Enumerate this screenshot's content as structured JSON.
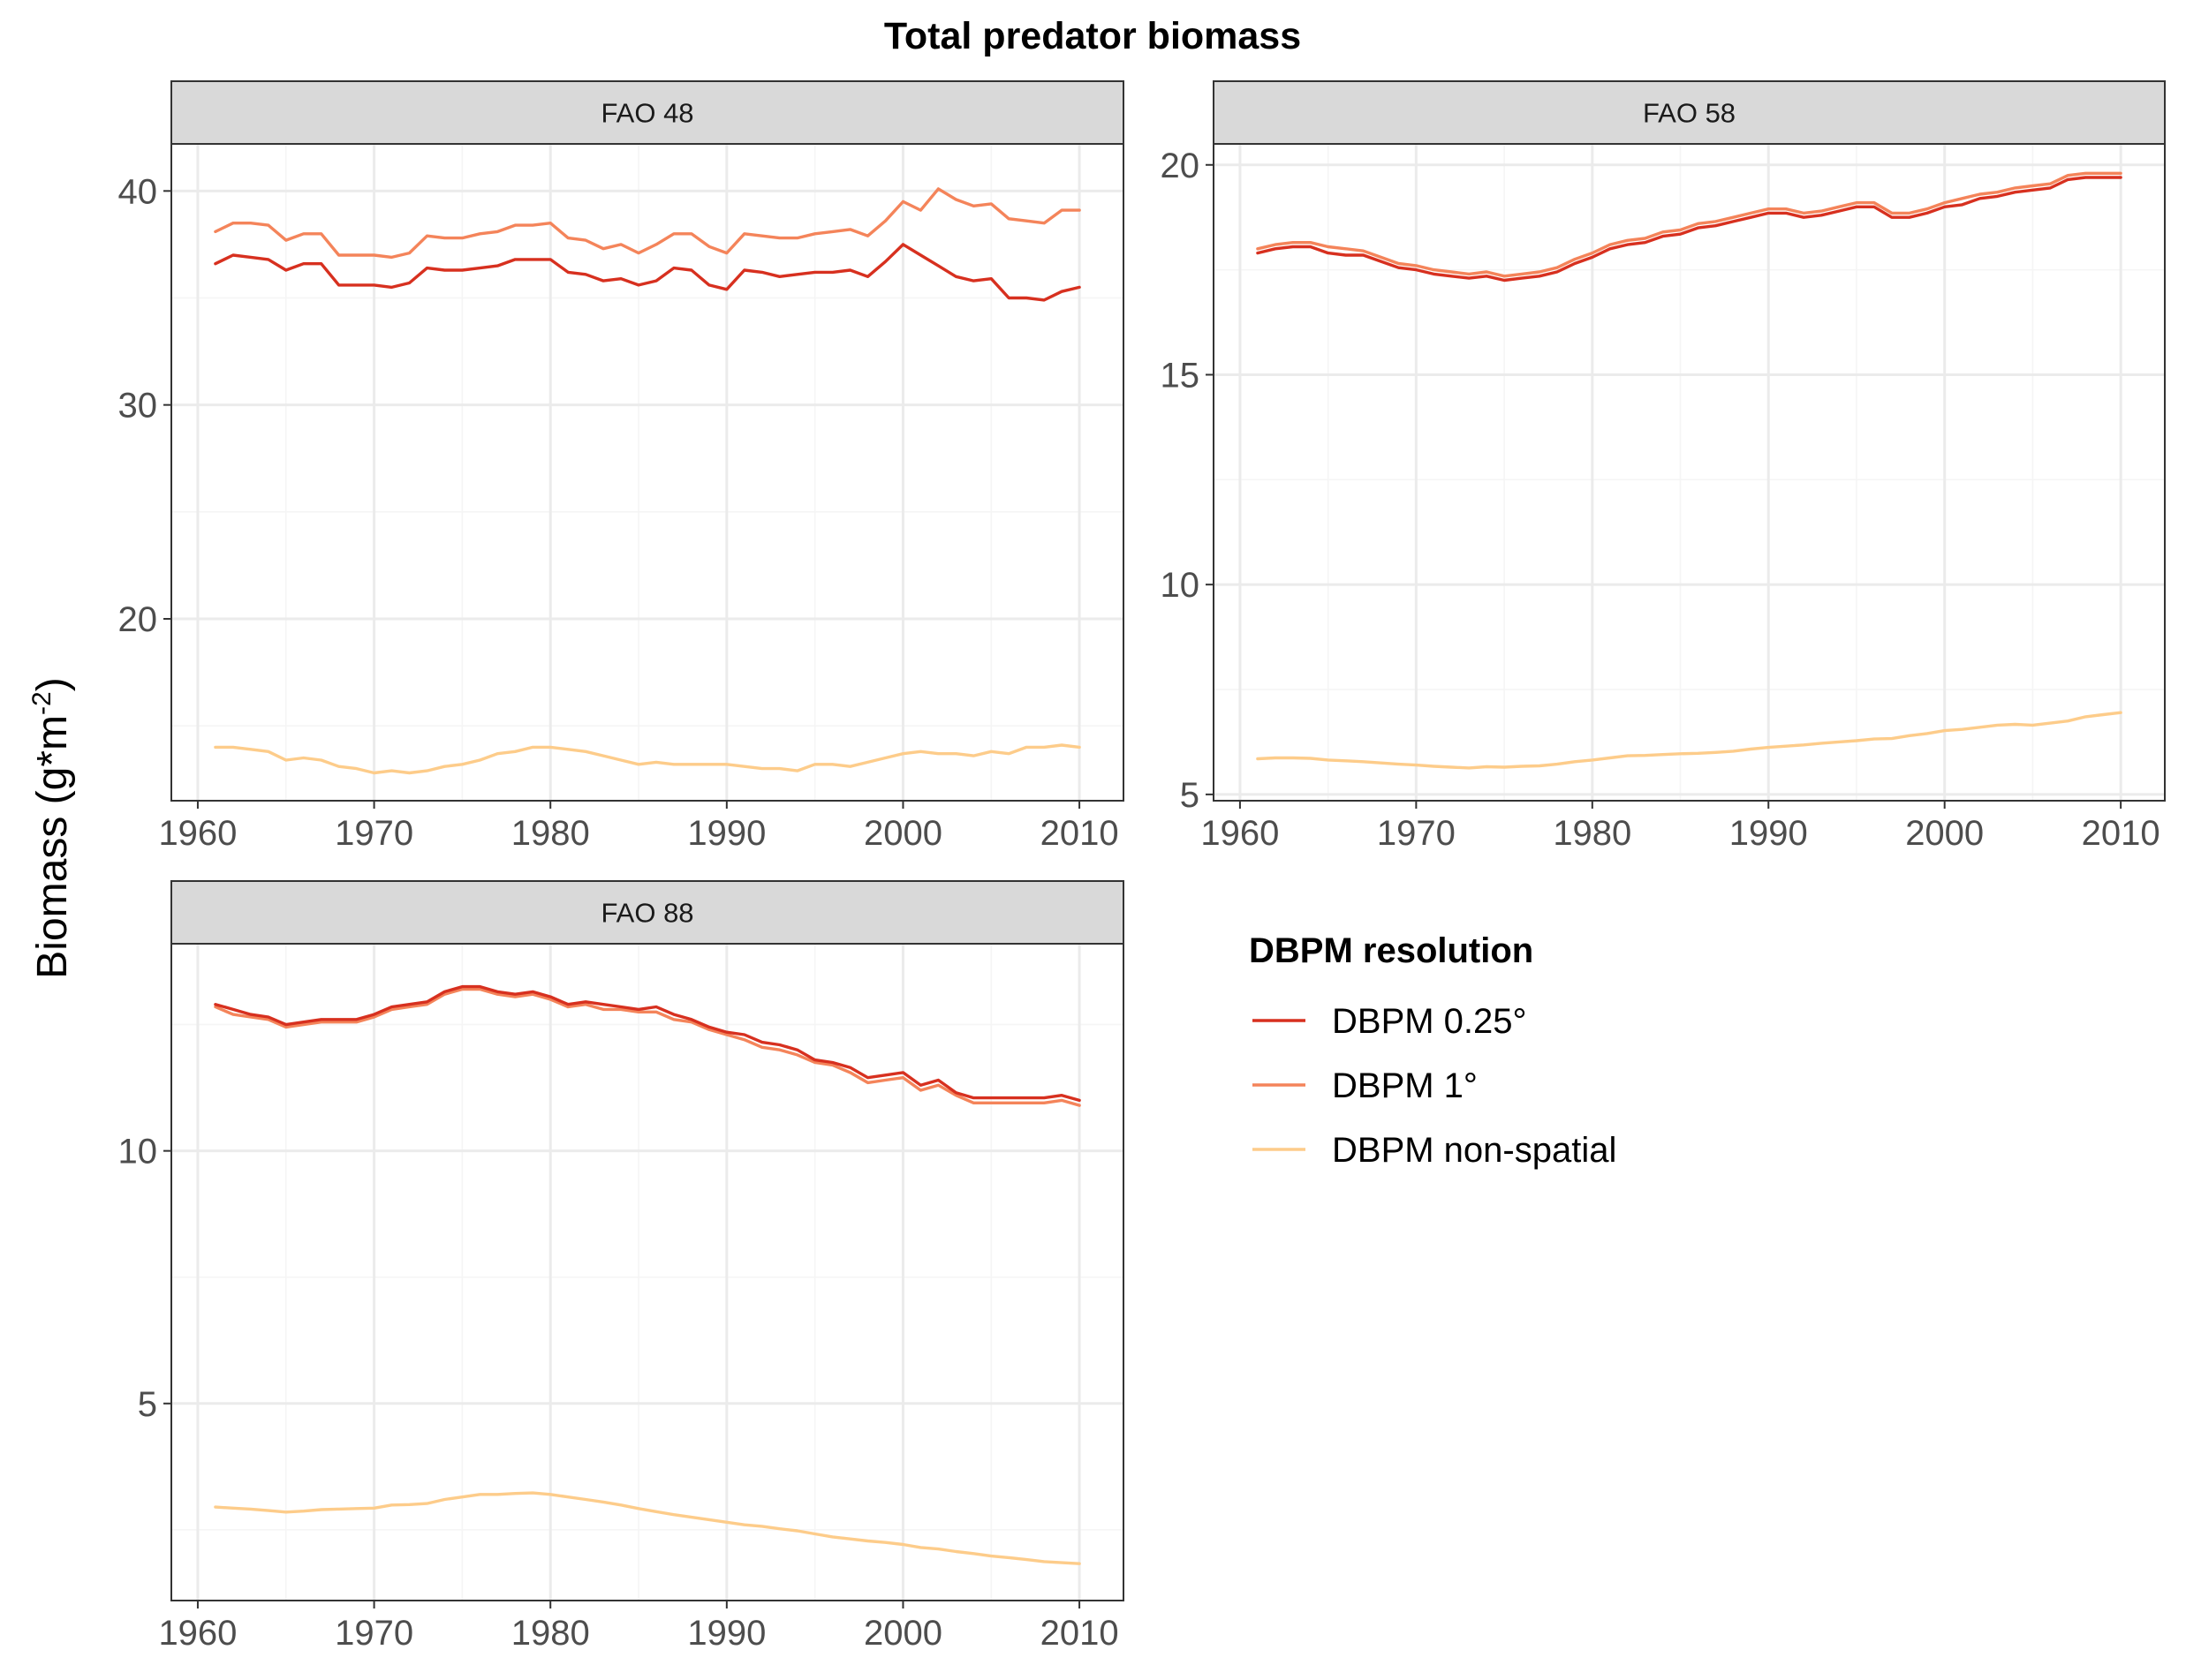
{
  "title": "Total predator biomass",
  "ylabel_prefix": "Biomass (g*m",
  "ylabel_sup": "-2",
  "ylabel_suffix": ")",
  "legend": {
    "title": "DBPM resolution",
    "placement": "right"
  },
  "colors": {
    "DBPM 0.25°": "#d7301f",
    "DBPM 1°": "#f4845a",
    "DBPM non-spatial": "#fdcc8a",
    "panel_border": "#333333",
    "strip_bg": "#d9d9d9",
    "grid_major": "#ebebeb",
    "grid_minor": "#f5f5f5"
  },
  "chart_data": [
    {
      "type": "line",
      "panel": "FAO 48",
      "x": [
        1961,
        1962,
        1963,
        1964,
        1965,
        1966,
        1967,
        1968,
        1969,
        1970,
        1971,
        1972,
        1973,
        1974,
        1975,
        1976,
        1977,
        1978,
        1979,
        1980,
        1981,
        1982,
        1983,
        1984,
        1985,
        1986,
        1987,
        1988,
        1989,
        1990,
        1991,
        1992,
        1993,
        1994,
        1995,
        1996,
        1997,
        1998,
        1999,
        2000,
        2001,
        2002,
        2003,
        2004,
        2005,
        2006,
        2007,
        2008,
        2009,
        2010
      ],
      "xlim": [
        1958.5,
        2012.5
      ],
      "ylim": [
        11.5,
        42.2
      ],
      "yticks": [
        20,
        30,
        40
      ],
      "xticks": [
        1960,
        1970,
        1980,
        1990,
        2000,
        2010
      ],
      "grid": true,
      "series": [
        {
          "name": "DBPM 0.25°",
          "values": [
            36.6,
            37.0,
            36.9,
            36.8,
            36.3,
            36.6,
            36.6,
            35.6,
            35.6,
            35.6,
            35.5,
            35.7,
            36.4,
            36.3,
            36.3,
            36.4,
            36.5,
            36.8,
            36.8,
            36.8,
            36.2,
            36.1,
            35.8,
            35.9,
            35.6,
            35.8,
            36.4,
            36.3,
            35.6,
            35.4,
            36.3,
            36.2,
            36.0,
            36.1,
            36.2,
            36.2,
            36.3,
            36.0,
            36.7,
            37.5,
            37.0,
            36.5,
            36.0,
            35.8,
            35.9,
            35.0,
            35.0,
            34.9,
            35.3,
            35.5
          ]
        },
        {
          "name": "DBPM 1°",
          "values": [
            38.1,
            38.5,
            38.5,
            38.4,
            37.7,
            38.0,
            38.0,
            37.0,
            37.0,
            37.0,
            36.9,
            37.1,
            37.9,
            37.8,
            37.8,
            38.0,
            38.1,
            38.4,
            38.4,
            38.5,
            37.8,
            37.7,
            37.3,
            37.5,
            37.1,
            37.5,
            38.0,
            38.0,
            37.4,
            37.1,
            38.0,
            37.9,
            37.8,
            37.8,
            38.0,
            38.1,
            38.2,
            37.9,
            38.6,
            39.5,
            39.1,
            40.1,
            39.6,
            39.3,
            39.4,
            38.7,
            38.6,
            38.5,
            39.1,
            39.1
          ]
        },
        {
          "name": "DBPM non-spatial",
          "values": [
            14.0,
            14.0,
            13.9,
            13.8,
            13.4,
            13.5,
            13.4,
            13.1,
            13.0,
            12.8,
            12.9,
            12.8,
            12.9,
            13.1,
            13.2,
            13.4,
            13.7,
            13.8,
            14.0,
            14.0,
            13.9,
            13.8,
            13.6,
            13.4,
            13.2,
            13.3,
            13.2,
            13.2,
            13.2,
            13.2,
            13.1,
            13.0,
            13.0,
            12.9,
            13.2,
            13.2,
            13.1,
            13.3,
            13.5,
            13.7,
            13.8,
            13.7,
            13.7,
            13.6,
            13.8,
            13.7,
            14.0,
            14.0,
            14.1,
            14.0
          ]
        }
      ]
    },
    {
      "type": "line",
      "panel": "FAO 58",
      "x": [
        1961,
        1962,
        1963,
        1964,
        1965,
        1966,
        1967,
        1968,
        1969,
        1970,
        1971,
        1972,
        1973,
        1974,
        1975,
        1976,
        1977,
        1978,
        1979,
        1980,
        1981,
        1982,
        1983,
        1984,
        1985,
        1986,
        1987,
        1988,
        1989,
        1990,
        1991,
        1992,
        1993,
        1994,
        1995,
        1996,
        1997,
        1998,
        1999,
        2000,
        2001,
        2002,
        2003,
        2004,
        2005,
        2006,
        2007,
        2008,
        2009,
        2010
      ],
      "xlim": [
        1958.5,
        2012.5
      ],
      "ylim": [
        4.85,
        20.5
      ],
      "yticks": [
        5,
        10,
        15,
        20
      ],
      "xticks": [
        1960,
        1970,
        1980,
        1990,
        2000,
        2010
      ],
      "grid": true,
      "series": [
        {
          "name": "DBPM 0.25°",
          "values": [
            17.9,
            18.0,
            18.05,
            18.05,
            17.9,
            17.85,
            17.85,
            17.7,
            17.55,
            17.5,
            17.4,
            17.35,
            17.3,
            17.35,
            17.25,
            17.3,
            17.35,
            17.45,
            17.65,
            17.8,
            18.0,
            18.1,
            18.15,
            18.3,
            18.35,
            18.5,
            18.55,
            18.65,
            18.75,
            18.85,
            18.85,
            18.75,
            18.8,
            18.9,
            19.0,
            19.0,
            18.75,
            18.75,
            18.85,
            19.0,
            19.05,
            19.2,
            19.25,
            19.35,
            19.4,
            19.45,
            19.65,
            19.7,
            19.7,
            19.7
          ]
        },
        {
          "name": "DBPM 1°",
          "values": [
            18.0,
            18.1,
            18.15,
            18.15,
            18.05,
            18.0,
            17.95,
            17.8,
            17.65,
            17.6,
            17.5,
            17.45,
            17.4,
            17.45,
            17.35,
            17.4,
            17.45,
            17.55,
            17.75,
            17.9,
            18.1,
            18.2,
            18.25,
            18.4,
            18.45,
            18.6,
            18.65,
            18.75,
            18.85,
            18.95,
            18.95,
            18.85,
            18.9,
            19.0,
            19.1,
            19.1,
            18.85,
            18.85,
            18.95,
            19.1,
            19.2,
            19.3,
            19.35,
            19.45,
            19.5,
            19.55,
            19.75,
            19.8,
            19.8,
            19.8
          ]
        },
        {
          "name": "DBPM non-spatial",
          "values": [
            5.85,
            5.87,
            5.87,
            5.86,
            5.82,
            5.8,
            5.78,
            5.75,
            5.72,
            5.7,
            5.67,
            5.65,
            5.63,
            5.66,
            5.65,
            5.67,
            5.68,
            5.72,
            5.78,
            5.82,
            5.87,
            5.92,
            5.93,
            5.95,
            5.97,
            5.98,
            6.0,
            6.03,
            6.08,
            6.12,
            6.15,
            6.18,
            6.22,
            6.25,
            6.28,
            6.32,
            6.33,
            6.4,
            6.45,
            6.52,
            6.55,
            6.6,
            6.65,
            6.67,
            6.65,
            6.7,
            6.75,
            6.85,
            6.9,
            6.95
          ]
        }
      ]
    },
    {
      "type": "line",
      "panel": "FAO 88",
      "x": [
        1961,
        1962,
        1963,
        1964,
        1965,
        1966,
        1967,
        1968,
        1969,
        1970,
        1971,
        1972,
        1973,
        1974,
        1975,
        1976,
        1977,
        1978,
        1979,
        1980,
        1981,
        1982,
        1983,
        1984,
        1985,
        1986,
        1987,
        1988,
        1989,
        1990,
        1991,
        1992,
        1993,
        1994,
        1995,
        1996,
        1997,
        1998,
        1999,
        2000,
        2001,
        2002,
        2003,
        2004,
        2005,
        2006,
        2007,
        2008,
        2009,
        2010
      ],
      "xlim": [
        1958.5,
        2012.5
      ],
      "ylim": [
        1.1,
        14.1
      ],
      "yticks": [
        5,
        10
      ],
      "xticks": [
        1960,
        1970,
        1980,
        1990,
        2000,
        2010
      ],
      "grid": true,
      "series": [
        {
          "name": "DBPM 0.25°",
          "values": [
            12.9,
            12.8,
            12.7,
            12.65,
            12.5,
            12.55,
            12.6,
            12.6,
            12.6,
            12.7,
            12.85,
            12.9,
            12.95,
            13.15,
            13.25,
            13.25,
            13.15,
            13.1,
            13.15,
            13.05,
            12.9,
            12.95,
            12.9,
            12.85,
            12.8,
            12.85,
            12.7,
            12.6,
            12.45,
            12.35,
            12.3,
            12.15,
            12.1,
            12.0,
            11.8,
            11.75,
            11.65,
            11.45,
            11.5,
            11.55,
            11.3,
            11.4,
            11.15,
            11.05,
            11.05,
            11.05,
            11.05,
            11.05,
            11.1,
            11.0
          ]
        },
        {
          "name": "DBPM 1°",
          "values": [
            12.85,
            12.7,
            12.65,
            12.6,
            12.45,
            12.5,
            12.55,
            12.55,
            12.55,
            12.65,
            12.8,
            12.85,
            12.9,
            13.1,
            13.2,
            13.2,
            13.1,
            13.05,
            13.1,
            13.0,
            12.85,
            12.9,
            12.8,
            12.8,
            12.75,
            12.75,
            12.6,
            12.55,
            12.4,
            12.3,
            12.2,
            12.05,
            12.0,
            11.9,
            11.75,
            11.7,
            11.55,
            11.35,
            11.4,
            11.45,
            11.2,
            11.3,
            11.1,
            10.95,
            10.95,
            10.95,
            10.95,
            10.95,
            11.0,
            10.9
          ]
        },
        {
          "name": "DBPM non-spatial",
          "values": [
            2.95,
            2.93,
            2.91,
            2.88,
            2.85,
            2.87,
            2.9,
            2.91,
            2.92,
            2.93,
            2.99,
            3.0,
            3.02,
            3.1,
            3.15,
            3.2,
            3.2,
            3.22,
            3.23,
            3.2,
            3.15,
            3.1,
            3.05,
            2.99,
            2.92,
            2.86,
            2.8,
            2.75,
            2.7,
            2.65,
            2.6,
            2.57,
            2.52,
            2.48,
            2.42,
            2.36,
            2.32,
            2.28,
            2.25,
            2.21,
            2.15,
            2.12,
            2.07,
            2.03,
            1.98,
            1.95,
            1.91,
            1.87,
            1.85,
            1.83
          ]
        }
      ]
    }
  ]
}
